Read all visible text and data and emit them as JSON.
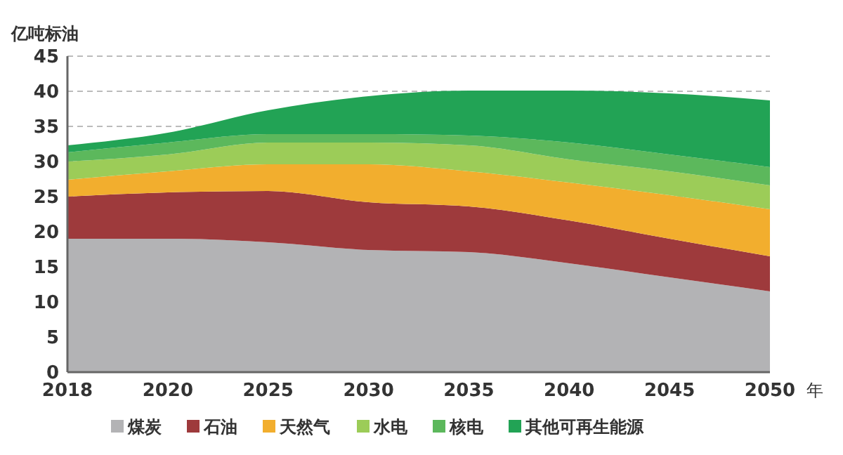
{
  "chart_data": {
    "type": "area",
    "stacked": true,
    "ylabel": "亿吨标油",
    "xlabel": "年",
    "categories": [
      "2018",
      "2020",
      "2025",
      "2030",
      "2035",
      "2040",
      "2045",
      "2050"
    ],
    "series": [
      {
        "name": "煤炭",
        "color": "#b3b3b5",
        "values": [
          19,
          19,
          18.5,
          17.4,
          17.1,
          15.5,
          13.5,
          11.5
        ]
      },
      {
        "name": "石油",
        "color": "#9e3a3c",
        "values": [
          6,
          6.6,
          7.3,
          6.8,
          6.5,
          6.1,
          5.5,
          5
        ]
      },
      {
        "name": "天然气",
        "color": "#f2ae2e",
        "values": [
          2.4,
          3,
          3.8,
          5.4,
          5,
          5.4,
          6.2,
          6.7
        ]
      },
      {
        "name": "水电",
        "color": "#9ccc58",
        "values": [
          2.6,
          2.4,
          3.1,
          3.1,
          3.7,
          3.3,
          3.4,
          3.4
        ]
      },
      {
        "name": "核电",
        "color": "#5cb85c",
        "values": [
          1.3,
          1.7,
          1.2,
          1.2,
          1.4,
          2.4,
          2.4,
          2.6
        ]
      },
      {
        "name": "其他可再生能源",
        "color": "#22a355",
        "values": [
          1,
          1.4,
          3.4,
          5.4,
          6.4,
          7.4,
          8.7,
          9.5
        ]
      }
    ],
    "ylim": [
      0,
      45
    ],
    "yticks": [
      0,
      5,
      10,
      15,
      20,
      25,
      30,
      35,
      40,
      45
    ],
    "grid": "y",
    "legend": "bottom"
  }
}
